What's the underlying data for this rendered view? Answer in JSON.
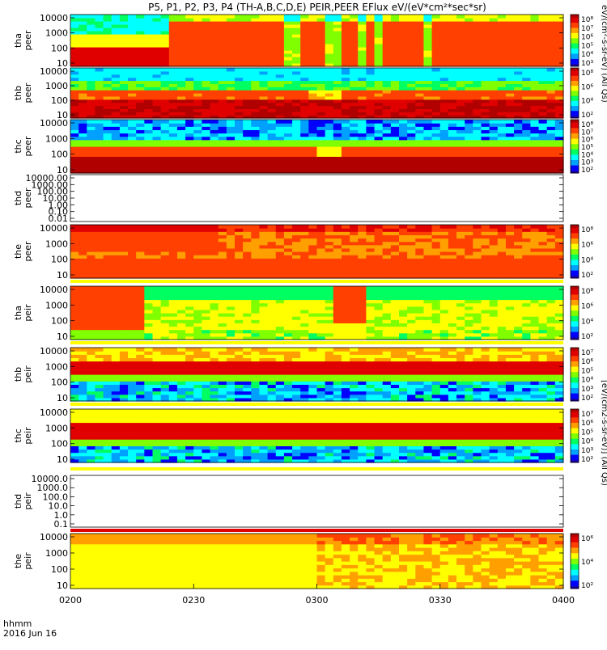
{
  "chart_data": {
    "type": "heatmap",
    "title": "P5, P1, P2, P3, P4 (TH-A,B,C,D,E) PEIR,PEER EFlux eV/(eV*cm²*sec*sr)",
    "x": {
      "ticks": [
        "0200",
        "0230",
        "0300",
        "0330",
        "0400"
      ],
      "label_line1": "hhmm",
      "label_line2": "2016 Jun 16"
    },
    "colorbar_label_top": "eV/(cm²-s-sr-eV) (All Qs)",
    "colorbar_label_bottom": "[eV/(cm2-s-sr-eV)] (All Qs)",
    "panels": [
      {
        "name": "tha peer",
        "label1": "tha",
        "label2": "peer",
        "has_data": true,
        "profile": "tha_peer",
        "yticks": [
          "10",
          "100",
          "1000",
          "10000"
        ],
        "cticks": [
          "10⁸",
          "10⁷",
          "10⁶",
          "10⁵",
          "10⁴",
          "10³"
        ]
      },
      {
        "name": "thb peer",
        "label1": "thb",
        "label2": "peer",
        "has_data": true,
        "profile": "thb_peer",
        "yticks": [
          "10",
          "100",
          "1000",
          "10000"
        ],
        "cticks": [
          "10⁸",
          "10⁶",
          "10⁴",
          "10²"
        ]
      },
      {
        "name": "thc peer",
        "label1": "thc",
        "label2": "peer",
        "has_data": true,
        "profile": "thc_peer",
        "yticks": [
          "10",
          "100",
          "1000",
          "10000"
        ],
        "cticks": [
          "10⁸",
          "10⁷",
          "10⁶",
          "10⁵",
          "10⁴",
          "10³",
          "10²"
        ]
      },
      {
        "name": "thd peer",
        "label1": "thd",
        "label2": "peer",
        "has_data": false,
        "profile": "none",
        "yticks": [
          "0.01",
          "0.10",
          "1.00",
          "10.00",
          "100.00",
          "1000.00",
          "10000.00"
        ],
        "cticks": []
      },
      {
        "name": "the peer",
        "label1": "the",
        "label2": "peer",
        "has_data": true,
        "profile": "the_peer",
        "yticks": [
          "10",
          "100",
          "1000",
          "10000"
        ],
        "cticks": [
          "10⁸",
          "10⁶",
          "10⁴",
          "10²"
        ]
      },
      {
        "name": "tha peir",
        "label1": "tha",
        "label2": "peir",
        "has_data": true,
        "profile": "tha_peir",
        "yticks": [
          "10",
          "100",
          "1000",
          "10000"
        ],
        "cticks": [
          "10⁸",
          "10⁶",
          "10⁴",
          "10²"
        ]
      },
      {
        "name": "thb peir",
        "label1": "thb",
        "label2": "peir",
        "has_data": true,
        "profile": "thb_peir",
        "yticks": [
          "10",
          "100",
          "1000",
          "10000"
        ],
        "cticks": [
          "10⁷",
          "10⁶",
          "10⁵",
          "10⁴",
          "10³",
          "10²"
        ]
      },
      {
        "name": "thc peir",
        "label1": "thc",
        "label2": "peir",
        "has_data": true,
        "profile": "thc_peir",
        "yticks": [
          "10",
          "100",
          "1000",
          "10000"
        ],
        "cticks": [
          "10⁷",
          "10⁶",
          "10⁵",
          "10⁴",
          "10³",
          "10²"
        ]
      },
      {
        "name": "thd peir",
        "label1": "thd",
        "label2": "peir",
        "has_data": false,
        "profile": "none",
        "yticks": [
          "0.1",
          "1.0",
          "10.0",
          "100.0",
          "1000.0",
          "10000.0"
        ],
        "cticks": []
      },
      {
        "name": "the peir",
        "label1": "the",
        "label2": "peir",
        "has_data": true,
        "profile": "the_peir",
        "yticks": [
          "10",
          "100",
          "1000",
          "10000"
        ],
        "cticks": [
          "10⁶",
          "10⁴",
          "10²"
        ]
      }
    ],
    "colorscale": [
      "#1a00a0",
      "#0000ff",
      "#00a0ff",
      "#00ffff",
      "#00ff60",
      "#80ff00",
      "#ffff00",
      "#ffa000",
      "#ff4000",
      "#e00000",
      "#b00000"
    ]
  }
}
